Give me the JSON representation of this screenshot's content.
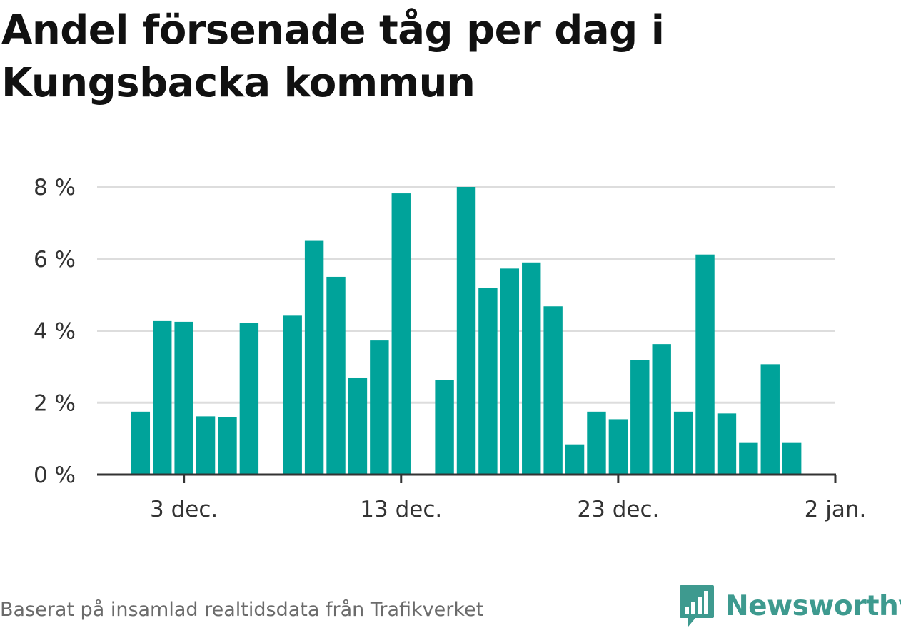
{
  "title": "Andel försenade tåg per dag i Kungsbacka kommun",
  "source": "Baserat på insamlad realtidsdata från Trafikverket",
  "brand": {
    "name": "Newsworthy",
    "logo_icon": "bar-chart-speech-bubble-icon"
  },
  "colors": {
    "bar": "#00a39a",
    "grid": "#dddddd",
    "axis": "#333333",
    "brand": "#3e9a8f"
  },
  "chart_data": {
    "type": "bar",
    "title": "Andel försenade tåg per dag i Kungsbacka kommun",
    "xlabel": "",
    "ylabel": "",
    "y_unit": "%",
    "ylim": [
      0,
      8
    ],
    "y_ticks": [
      {
        "value": 0,
        "label": "0 %"
      },
      {
        "value": 2,
        "label": "2 %"
      },
      {
        "value": 4,
        "label": "4 %"
      },
      {
        "value": 6,
        "label": "6 %"
      },
      {
        "value": 8,
        "label": "8 %"
      }
    ],
    "xlim": [
      "2025-11-29",
      "2026-01-02"
    ],
    "x_ticks": [
      {
        "date": "2025-12-03",
        "label": "3 dec."
      },
      {
        "date": "2025-12-13",
        "label": "13 dec."
      },
      {
        "date": "2025-12-23",
        "label": "23 dec."
      },
      {
        "date": "2026-01-02",
        "label": "2 jan."
      }
    ],
    "grid": true,
    "legend": "none",
    "data": [
      {
        "date": "2025-12-01",
        "value": 1.75
      },
      {
        "date": "2025-12-02",
        "value": 4.27
      },
      {
        "date": "2025-12-03",
        "value": 4.25
      },
      {
        "date": "2025-12-04",
        "value": 1.62
      },
      {
        "date": "2025-12-05",
        "value": 1.6
      },
      {
        "date": "2025-12-06",
        "value": 4.21
      },
      {
        "date": "2025-12-07",
        "value": null
      },
      {
        "date": "2025-12-08",
        "value": 4.42
      },
      {
        "date": "2025-12-09",
        "value": 6.5
      },
      {
        "date": "2025-12-10",
        "value": 5.5
      },
      {
        "date": "2025-12-11",
        "value": 2.7
      },
      {
        "date": "2025-12-12",
        "value": 3.73
      },
      {
        "date": "2025-12-13",
        "value": 7.82
      },
      {
        "date": "2025-12-14",
        "value": null
      },
      {
        "date": "2025-12-15",
        "value": 2.64
      },
      {
        "date": "2025-12-16",
        "value": 8.0
      },
      {
        "date": "2025-12-17",
        "value": 5.2
      },
      {
        "date": "2025-12-18",
        "value": 5.73
      },
      {
        "date": "2025-12-19",
        "value": 5.9
      },
      {
        "date": "2025-12-20",
        "value": 4.68
      },
      {
        "date": "2025-12-21",
        "value": 0.84
      },
      {
        "date": "2025-12-22",
        "value": 1.75
      },
      {
        "date": "2025-12-23",
        "value": 1.54
      },
      {
        "date": "2025-12-24",
        "value": 3.18
      },
      {
        "date": "2025-12-25",
        "value": 3.63
      },
      {
        "date": "2025-12-26",
        "value": 1.75
      },
      {
        "date": "2025-12-27",
        "value": 6.12
      },
      {
        "date": "2025-12-28",
        "value": 1.7
      },
      {
        "date": "2025-12-29",
        "value": 0.88
      },
      {
        "date": "2025-12-30",
        "value": 3.07
      },
      {
        "date": "2025-12-31",
        "value": 0.88
      }
    ]
  }
}
